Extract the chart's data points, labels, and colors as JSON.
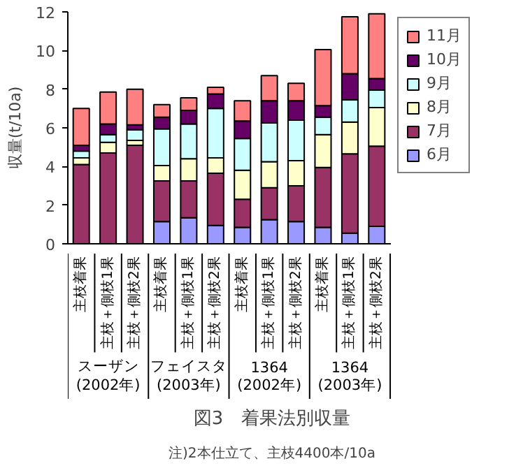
{
  "chart_data": {
    "type": "bar",
    "title": "図3　着果法別収量",
    "subtitle": "注)2本仕立て、主枝4400本/10a",
    "ylabel": "収量(t/10a)",
    "categories": [
      "主枝着果",
      "主枝＋側枝1果",
      "主枝＋側枝2果",
      "主枝着果",
      "主枝＋側枝1果",
      "主枝＋側枝2果",
      "主枝着果",
      "主枝＋側枝1果",
      "主枝＋側枝2果",
      "主枝着果",
      "主枝＋側枝1果",
      "主枝＋側枝2果"
    ],
    "annotations": [
      "スーザン\n(2002年)",
      "フェイスタ\n(2003年)",
      "1364\n(2002年)",
      "1364\n(2003年)"
    ],
    "stacked": true,
    "series": [
      {
        "name": "6月",
        "color": "#9999ff",
        "values": [
          0,
          0,
          0,
          1.15,
          1.35,
          0.95,
          0.85,
          1.25,
          1.15,
          0.85,
          0.55,
          0.9
        ]
      },
      {
        "name": "7月",
        "color": "#993366",
        "values": [
          4.1,
          4.7,
          5.1,
          2.1,
          1.9,
          2.7,
          1.45,
          1.65,
          1.85,
          3.1,
          4.1,
          4.15
        ]
      },
      {
        "name": "8月",
        "color": "#ffffcc",
        "values": [
          0.35,
          0.55,
          0.25,
          0.8,
          1.15,
          0.8,
          1.5,
          1.35,
          1.3,
          1.7,
          1.65,
          2.0
        ]
      },
      {
        "name": "9月",
        "color": "#ccffff",
        "values": [
          0.35,
          0.4,
          0.55,
          1.9,
          1.8,
          2.55,
          1.65,
          2.0,
          2.1,
          0.9,
          1.15,
          0.9
        ]
      },
      {
        "name": "10月",
        "color": "#660066",
        "values": [
          0.3,
          0.55,
          0.25,
          0.6,
          0.7,
          0.75,
          0.9,
          1.15,
          1.0,
          0.6,
          1.35,
          0.6
        ]
      },
      {
        "name": "11月",
        "color": "#ff8080",
        "values": [
          1.9,
          1.65,
          1.85,
          0.65,
          0.65,
          0.35,
          1.05,
          1.3,
          0.9,
          2.9,
          2.95,
          3.35
        ]
      }
    ],
    "ylim": [
      0,
      12
    ],
    "yticks": [
      0,
      2,
      4,
      6,
      8,
      10,
      12
    ],
    "grid": false,
    "legend": "right"
  }
}
